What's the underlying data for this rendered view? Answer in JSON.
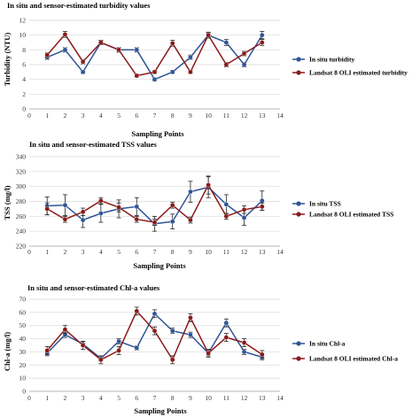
{
  "colors": {
    "in_situ": "#2f5597",
    "landsat": "#8b1a1a",
    "grid": "#d9d9d9",
    "axis": "#a6a6a6"
  },
  "chart_data": [
    {
      "type": "line",
      "title": "In situ and sensor-estimated turbidity values",
      "xlabel": "Sampling Points",
      "ylabel": "Turbidity (NTU)",
      "xlim": [
        0,
        14
      ],
      "ylim": [
        0,
        12
      ],
      "xticks": [
        0,
        1,
        2,
        3,
        4,
        5,
        6,
        7,
        8,
        9,
        10,
        11,
        12,
        13,
        14
      ],
      "yticks": [
        0,
        2,
        4,
        6,
        8,
        10,
        12
      ],
      "grid": true,
      "legend": "right",
      "x": [
        1,
        2,
        3,
        4,
        5,
        6,
        7,
        8,
        9,
        10,
        11,
        12,
        13
      ],
      "series": [
        {
          "name": "In situ turbidity",
          "values": [
            7,
            8,
            5,
            9,
            8,
            8,
            4,
            5,
            7,
            10,
            9,
            6,
            10
          ],
          "error": [
            0.3,
            0.3,
            0.2,
            0.3,
            0.3,
            0.3,
            0.2,
            0.2,
            0.3,
            0.3,
            0.4,
            0.3,
            0.5
          ]
        },
        {
          "name": "Landsat 8 OLI estimated turbidity",
          "values": [
            7.3,
            10.1,
            6.4,
            9,
            8,
            4.5,
            5,
            8.9,
            5,
            10,
            6,
            7.5,
            9
          ],
          "error": [
            0.3,
            0.4,
            0.3,
            0.3,
            0.3,
            0.2,
            0.2,
            0.4,
            0.2,
            0.4,
            0.3,
            0.3,
            0.4
          ]
        }
      ]
    },
    {
      "type": "line",
      "title": "In situ and sensor-estimated TSS values",
      "xlabel": "Sampling Points",
      "ylabel": "TSS (mg/l)",
      "xlim": [
        0,
        14
      ],
      "ylim": [
        220,
        340
      ],
      "xticks": [
        0,
        1,
        2,
        3,
        4,
        5,
        6,
        7,
        8,
        9,
        10,
        11,
        12,
        13,
        14
      ],
      "yticks": [
        220,
        240,
        260,
        280,
        300,
        320,
        340
      ],
      "grid": true,
      "legend": "right",
      "x": [
        1,
        2,
        3,
        4,
        5,
        6,
        7,
        8,
        9,
        10,
        11,
        12,
        13
      ],
      "series": [
        {
          "name": "In situ TSS",
          "values": [
            274,
            275,
            255,
            264,
            270,
            273,
            250,
            253,
            293,
            299,
            276,
            258,
            281
          ],
          "error": [
            12,
            14,
            10,
            12,
            12,
            12,
            10,
            10,
            14,
            14,
            13,
            10,
            13
          ]
        },
        {
          "name": "Landsat 8 OLI estimated TSS",
          "values": [
            270,
            256,
            266,
            281,
            272,
            256,
            252,
            275,
            255,
            302,
            260,
            269,
            273
          ],
          "error": [
            8,
            4,
            5,
            4,
            6,
            4,
            4,
            4,
            4,
            12,
            4,
            5,
            5
          ]
        }
      ]
    },
    {
      "type": "line",
      "title": "In situ and sensor-estimated Chl-a values",
      "xlabel": "Sampling Points",
      "ylabel": "Chl-a (mg/l)",
      "xlim": [
        0,
        14
      ],
      "ylim": [
        0,
        70
      ],
      "xticks": [
        0,
        1,
        2,
        3,
        4,
        5,
        6,
        7,
        8,
        9,
        10,
        11,
        12,
        13,
        14
      ],
      "yticks": [
        0,
        10,
        20,
        30,
        40,
        50,
        60,
        70
      ],
      "grid": true,
      "legend": "right",
      "x": [
        1,
        2,
        3,
        4,
        5,
        6,
        7,
        8,
        9,
        10,
        11,
        12,
        13
      ],
      "series": [
        {
          "name": "In situ Chl-a",
          "values": [
            29,
            43,
            36,
            25,
            38,
            33,
            59,
            46,
            43,
            29,
            52,
            30,
            26
          ],
          "error": [
            2,
            2,
            2,
            2,
            2,
            1.5,
            3,
            2,
            2,
            2,
            3,
            2,
            2
          ]
        },
        {
          "name": "Landsat 8 OLI estimated Chl-a",
          "values": [
            31,
            47,
            35,
            24,
            31,
            61,
            46,
            24,
            56,
            29,
            41,
            37,
            28
          ],
          "error": [
            3,
            3,
            3,
            3,
            3,
            3,
            3,
            3,
            3,
            3,
            3,
            3,
            3
          ]
        }
      ]
    }
  ]
}
